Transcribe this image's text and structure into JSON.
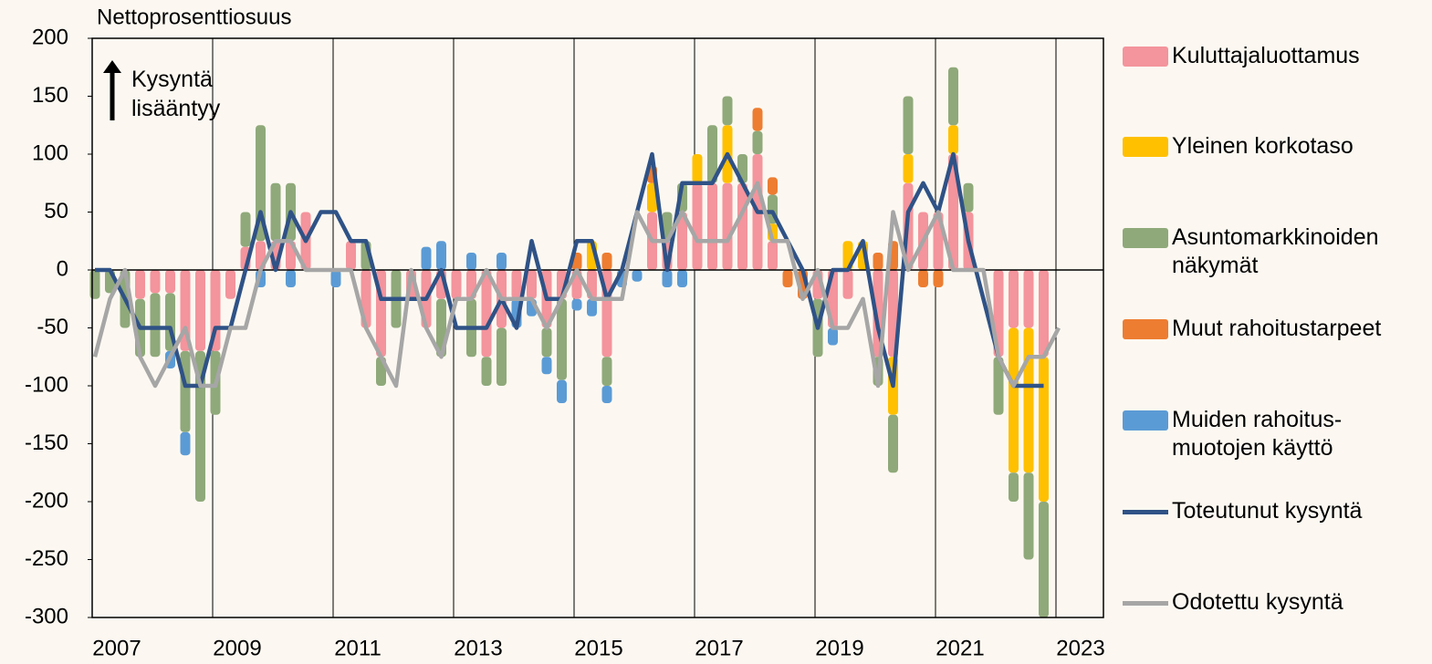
{
  "chart_data": {
    "type": "bar",
    "y_label": "Nettoprosenttiosuus",
    "annotation": "Kysyntä lisääntyy",
    "categories": [
      "2007",
      null,
      null,
      null,
      null,
      null,
      null,
      null,
      "2009",
      null,
      null,
      null,
      null,
      null,
      null,
      null,
      "2011",
      null,
      null,
      null,
      null,
      null,
      null,
      null,
      "2013",
      null,
      null,
      null,
      null,
      null,
      null,
      null,
      "2015",
      null,
      null,
      null,
      null,
      null,
      null,
      null,
      "2017",
      null,
      null,
      null,
      null,
      null,
      null,
      null,
      "2019",
      null,
      null,
      null,
      null,
      null,
      null,
      null,
      "2021",
      null,
      null,
      null,
      null,
      null,
      null,
      null,
      "2023"
    ],
    "ylim": [
      -300,
      200
    ],
    "yticks": [
      -300,
      -250,
      -200,
      -150,
      -100,
      -50,
      0,
      50,
      100,
      150,
      200
    ],
    "series": [
      {
        "name": "Kuluttajaluottamus",
        "color": "#f4949c",
        "values": [
          0,
          0,
          0,
          -25,
          -20,
          -20,
          -70,
          -70,
          -70,
          -25,
          20,
          25,
          25,
          25,
          50,
          0,
          0,
          25,
          -50,
          -75,
          0,
          -25,
          -50,
          -25,
          -25,
          -25,
          -75,
          -50,
          -25,
          -25,
          -50,
          -25,
          -25,
          -25,
          -75,
          0,
          0,
          50,
          25,
          50,
          75,
          75,
          75,
          75,
          100,
          25,
          0,
          0,
          -25,
          -50,
          -25,
          0,
          -75,
          -75,
          75,
          50,
          50,
          100,
          50,
          0,
          -75,
          -50,
          -50,
          -75,
          null
        ]
      },
      {
        "name": "Yleinen korkotaso",
        "color": "#ffc000",
        "values": [
          0,
          0,
          0,
          0,
          0,
          0,
          0,
          0,
          0,
          0,
          0,
          0,
          0,
          0,
          0,
          0,
          0,
          0,
          0,
          0,
          0,
          0,
          0,
          0,
          0,
          0,
          0,
          0,
          0,
          0,
          0,
          0,
          0,
          25,
          0,
          0,
          0,
          25,
          0,
          0,
          25,
          0,
          50,
          0,
          0,
          15,
          0,
          0,
          0,
          0,
          25,
          25,
          0,
          -50,
          25,
          0,
          0,
          25,
          0,
          0,
          0,
          -125,
          -125,
          -125,
          null
        ]
      },
      {
        "name": "Asuntomarkkinoiden näkymät",
        "color": "#8fa97a",
        "values": [
          -25,
          -20,
          -50,
          -50,
          -55,
          -50,
          -70,
          -130,
          -55,
          0,
          30,
          100,
          50,
          50,
          0,
          0,
          0,
          0,
          25,
          -25,
          -50,
          0,
          0,
          -50,
          0,
          -50,
          -25,
          -50,
          0,
          0,
          -25,
          -70,
          0,
          0,
          -25,
          0,
          0,
          0,
          25,
          25,
          0,
          50,
          25,
          25,
          20,
          25,
          0,
          0,
          -50,
          0,
          0,
          0,
          -25,
          -50,
          50,
          0,
          0,
          50,
          25,
          0,
          -50,
          -25,
          -75,
          -100,
          null
        ]
      },
      {
        "name": "Muut rahoitustarpeet",
        "color": "#ed7d31",
        "values": [
          0,
          0,
          0,
          0,
          0,
          0,
          0,
          0,
          0,
          0,
          0,
          0,
          0,
          0,
          0,
          0,
          0,
          0,
          0,
          0,
          0,
          0,
          0,
          0,
          0,
          0,
          0,
          0,
          0,
          0,
          0,
          0,
          15,
          0,
          15,
          0,
          0,
          15,
          0,
          0,
          0,
          0,
          0,
          0,
          20,
          15,
          -15,
          -25,
          0,
          0,
          0,
          0,
          15,
          25,
          0,
          -15,
          -15,
          0,
          0,
          0,
          0,
          0,
          0,
          0,
          null
        ]
      },
      {
        "name": "Muiden rahoitus-muotojen käyttö",
        "color": "#5b9bd5",
        "values": [
          0,
          0,
          0,
          0,
          0,
          -15,
          -20,
          0,
          0,
          0,
          0,
          -15,
          0,
          -15,
          0,
          0,
          -15,
          0,
          0,
          0,
          0,
          0,
          20,
          25,
          0,
          15,
          0,
          15,
          -25,
          -15,
          -15,
          -20,
          -10,
          -15,
          -15,
          -15,
          -10,
          0,
          -15,
          -15,
          0,
          0,
          0,
          0,
          0,
          0,
          0,
          0,
          0,
          -15,
          0,
          0,
          0,
          0,
          0,
          0,
          0,
          0,
          0,
          0,
          0,
          0,
          0,
          0,
          null
        ]
      },
      {
        "name": "Toteutunut kysyntä",
        "type": "line",
        "color": "#2f5286",
        "values": [
          0,
          0,
          -25,
          -50,
          -50,
          -50,
          -100,
          -100,
          -50,
          -50,
          0,
          50,
          0,
          50,
          25,
          50,
          50,
          25,
          25,
          -25,
          -25,
          -25,
          -25,
          0,
          -50,
          -50,
          -50,
          -25,
          -50,
          25,
          -25,
          -25,
          25,
          25,
          -25,
          0,
          50,
          100,
          0,
          75,
          75,
          75,
          100,
          75,
          50,
          50,
          25,
          0,
          -50,
          0,
          0,
          25,
          -50,
          -100,
          50,
          75,
          50,
          100,
          25,
          -25,
          -75,
          -100,
          -100,
          -100,
          null
        ]
      },
      {
        "name": "Odotettu kysyntä",
        "type": "line",
        "color": "#a6a6a6",
        "values": [
          -75,
          -25,
          0,
          -75,
          -100,
          -75,
          -50,
          -100,
          -100,
          -50,
          -50,
          0,
          25,
          25,
          0,
          0,
          0,
          0,
          -50,
          -75,
          -100,
          0,
          -50,
          -75,
          -25,
          -25,
          0,
          -25,
          -25,
          -25,
          -50,
          -25,
          0,
          -25,
          -25,
          -25,
          50,
          25,
          25,
          50,
          25,
          25,
          25,
          50,
          75,
          25,
          25,
          -25,
          0,
          -50,
          -50,
          -25,
          -100,
          50,
          0,
          25,
          50,
          0,
          0,
          0,
          -75,
          -100,
          -75,
          -75,
          -50
        ]
      }
    ]
  }
}
